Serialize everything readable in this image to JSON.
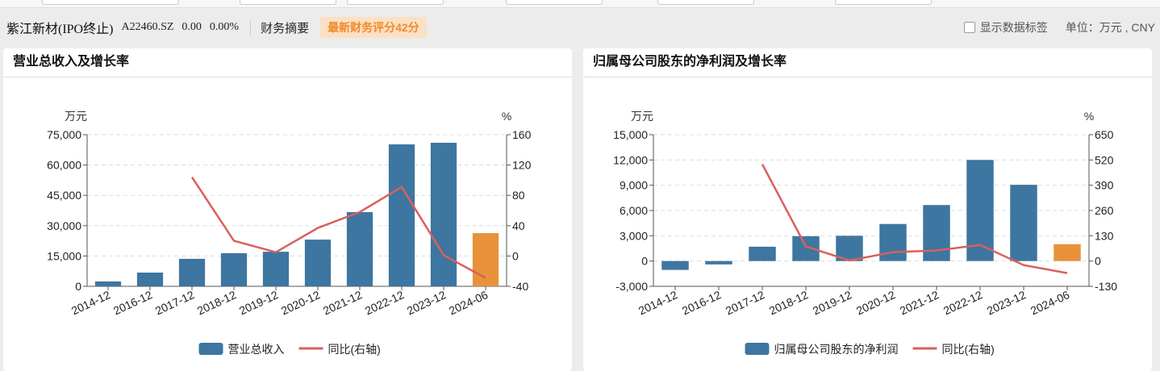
{
  "header": {
    "name": "紫江新材(IPO终止)",
    "code": "A22460.SZ",
    "price": "0.00",
    "change": "0.00%",
    "summary": "财务摘要",
    "score": "最新财务评分42分",
    "show_labels": "显示数据标签",
    "unit": "单位：万元 , CNY"
  },
  "colors": {
    "bar": "#3d76a0",
    "bar_latest": "#e8923a",
    "line": "#d9605c"
  },
  "chart_data": [
    {
      "type": "bar+line",
      "title": "营业总收入及增长率",
      "left_unit": "万元",
      "right_unit": "%",
      "categories": [
        "2014-12",
        "2016-12",
        "2017-12",
        "2018-12",
        "2019-12",
        "2020-12",
        "2021-12",
        "2022-12",
        "2023-12",
        "2024-06"
      ],
      "bar_series": {
        "name": "营业总收入",
        "values": [
          2400,
          6800,
          13600,
          16400,
          17100,
          23100,
          36700,
          70200,
          71000,
          26300
        ]
      },
      "line_series": {
        "name": "同比(右轴)",
        "values": [
          null,
          null,
          104,
          20,
          5,
          37,
          58,
          91,
          1,
          -29
        ]
      },
      "ylim": [
        0,
        75000
      ],
      "yticks": [
        "0",
        "15,000",
        "30,000",
        "45,000",
        "60,000",
        "75,000"
      ],
      "y2lim": [
        -40,
        160
      ],
      "y2ticks": [
        "-40",
        "0",
        "40",
        "80",
        "120",
        "160"
      ],
      "grid": true,
      "legend": "bottom"
    },
    {
      "type": "bar+line",
      "title": "归属母公司股东的净利润及增长率",
      "left_unit": "万元",
      "right_unit": "%",
      "categories": [
        "2014-12",
        "2016-12",
        "2017-12",
        "2018-12",
        "2019-12",
        "2020-12",
        "2021-12",
        "2022-12",
        "2023-12",
        "2024-06"
      ],
      "bar_series": {
        "name": "归属母公司股东的净利润",
        "values": [
          -1050,
          -400,
          1700,
          2950,
          3000,
          4400,
          6650,
          12000,
          9050,
          2000
        ]
      },
      "line_series": {
        "name": "同比(右轴)",
        "values": [
          null,
          null,
          498,
          75,
          3,
          46,
          54,
          83,
          -21,
          -62
        ]
      },
      "ylim": [
        -3000,
        15000
      ],
      "yticks": [
        "-3,000",
        "0",
        "3,000",
        "6,000",
        "9,000",
        "12,000",
        "15,000"
      ],
      "y2lim": [
        -130,
        650
      ],
      "y2ticks": [
        "-130",
        "0",
        "130",
        "260",
        "390",
        "520",
        "650"
      ],
      "grid": true,
      "legend": "bottom"
    }
  ]
}
